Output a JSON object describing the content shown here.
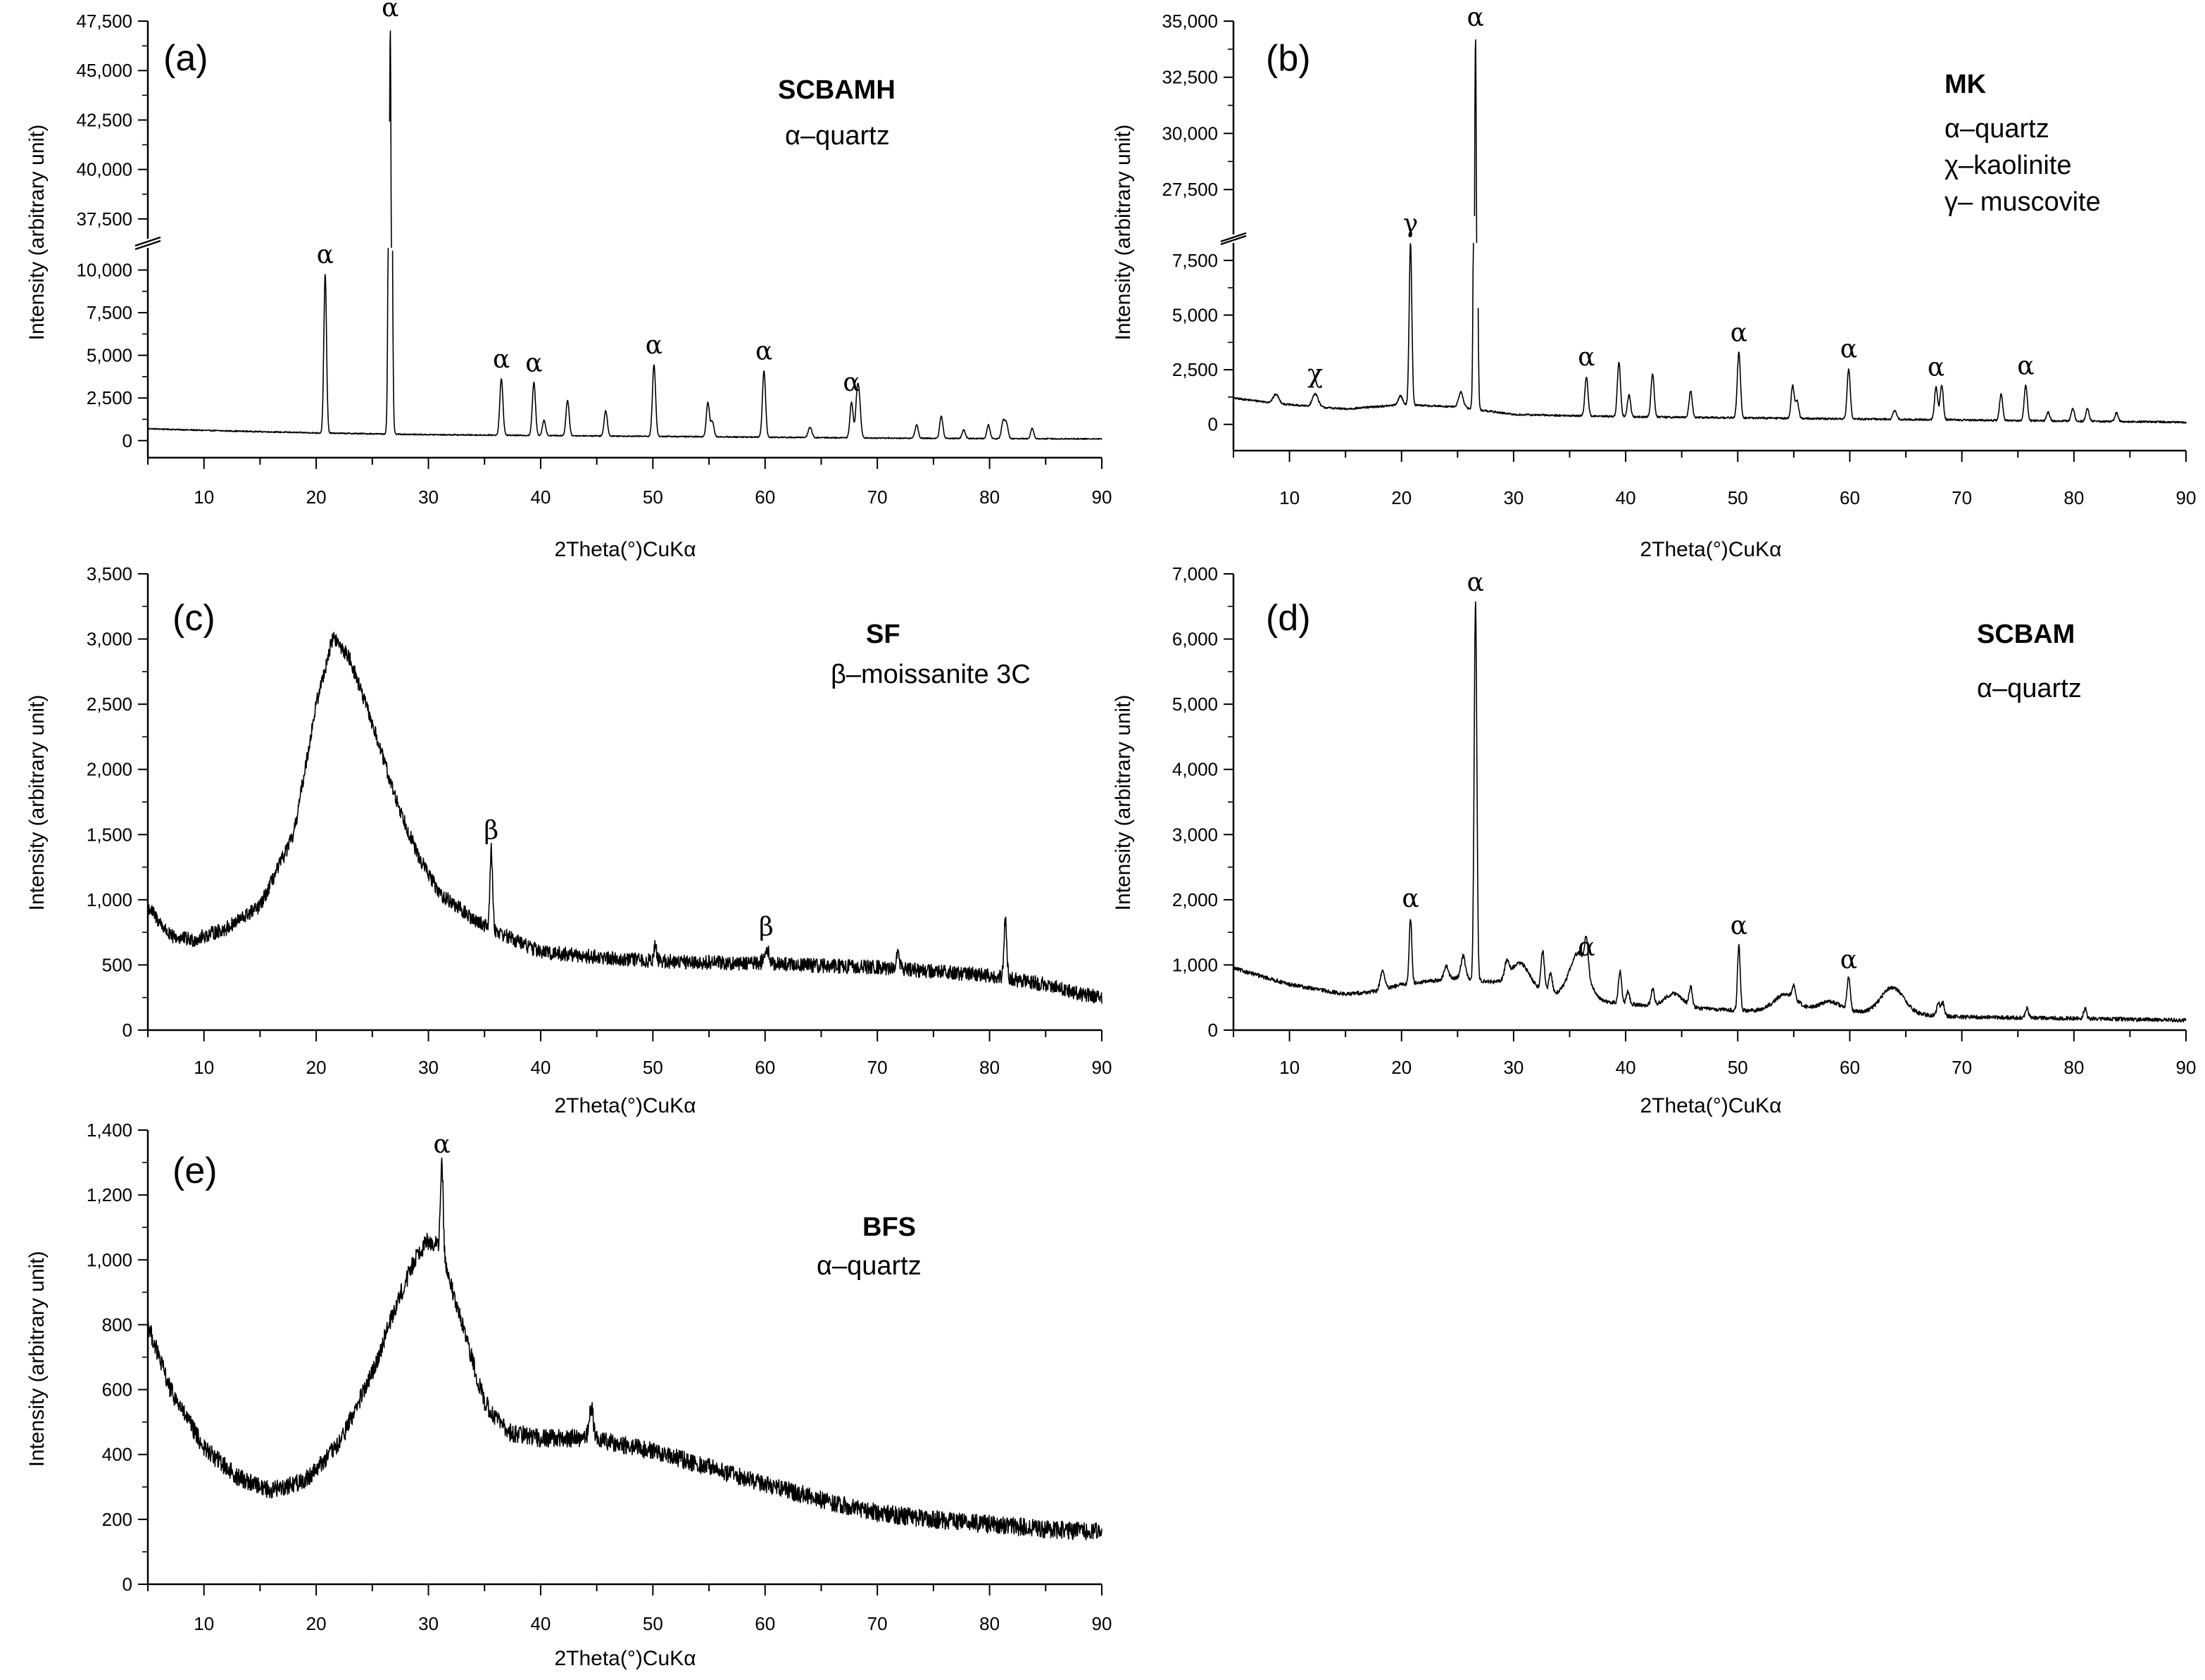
{
  "chart_data": [
    {
      "id": "a",
      "type": "line",
      "panel_label": "(a)",
      "sample": "SCBAMH",
      "legend": [
        "α–quartz"
      ],
      "xlabel": "2Theta(°)CuKα",
      "ylabel": "Intensity (arbitrary unit)",
      "xlim": [
        5,
        90
      ],
      "x_ticks": [
        "10",
        "20",
        "30",
        "40",
        "50",
        "60",
        "70",
        "80",
        "90"
      ],
      "broken_axis": true,
      "lower_ylim": [
        -1000,
        11300
      ],
      "upper_ylim": [
        36500,
        47500
      ],
      "y_ticks_lower": [
        "0",
        "2,500",
        "5,000",
        "7,500",
        "10,000"
      ],
      "y_ticks_upper": [
        "37,500",
        "40,000",
        "42,500",
        "45,000",
        "47,500"
      ],
      "baseline": [
        [
          5,
          700
        ],
        [
          10,
          600
        ],
        [
          20,
          450
        ],
        [
          30,
          350
        ],
        [
          40,
          300
        ],
        [
          50,
          250
        ],
        [
          60,
          200
        ],
        [
          70,
          150
        ],
        [
          80,
          120
        ],
        [
          90,
          100
        ]
      ],
      "noise": 35,
      "peaks": [
        {
          "x": 20.8,
          "y": 9300,
          "w": 0.12,
          "label": "α"
        },
        {
          "x": 26.6,
          "y": 46800,
          "w": 0.12,
          "label": "α"
        },
        {
          "x": 36.5,
          "y": 3300,
          "w": 0.14,
          "label": "α"
        },
        {
          "x": 39.4,
          "y": 3100,
          "w": 0.14,
          "label": "α"
        },
        {
          "x": 40.3,
          "y": 900,
          "w": 0.14
        },
        {
          "x": 42.4,
          "y": 2100,
          "w": 0.14
        },
        {
          "x": 45.8,
          "y": 1500,
          "w": 0.14
        },
        {
          "x": 50.1,
          "y": 4200,
          "w": 0.14,
          "label": "α"
        },
        {
          "x": 54.9,
          "y": 2000,
          "w": 0.14
        },
        {
          "x": 55.3,
          "y": 900,
          "w": 0.14
        },
        {
          "x": 59.9,
          "y": 3900,
          "w": 0.14,
          "label": "α"
        },
        {
          "x": 64.0,
          "y": 600,
          "w": 0.16
        },
        {
          "x": 67.7,
          "y": 2100,
          "w": 0.14,
          "label": "α"
        },
        {
          "x": 68.2,
          "y": 2300,
          "w": 0.14
        },
        {
          "x": 68.4,
          "y": 1800,
          "w": 0.14
        },
        {
          "x": 73.5,
          "y": 800,
          "w": 0.14
        },
        {
          "x": 75.7,
          "y": 1300,
          "w": 0.14
        },
        {
          "x": 77.7,
          "y": 500,
          "w": 0.14
        },
        {
          "x": 79.9,
          "y": 800,
          "w": 0.14
        },
        {
          "x": 81.2,
          "y": 1000,
          "w": 0.14
        },
        {
          "x": 81.5,
          "y": 900,
          "w": 0.14
        },
        {
          "x": 83.8,
          "y": 600,
          "w": 0.14
        }
      ],
      "humps": []
    },
    {
      "id": "b",
      "type": "line",
      "panel_label": "(b)",
      "sample": "MK",
      "legend": [
        "α–quartz",
        "χ–kaolinite",
        "γ– muscovite"
      ],
      "xlabel": "2Theta(°)CuKα",
      "ylabel": "Intensity (arbitrary unit)",
      "xlim": [
        5,
        90
      ],
      "x_ticks": [
        "10",
        "20",
        "30",
        "40",
        "50",
        "60",
        "70",
        "80",
        "90"
      ],
      "broken_axis": true,
      "lower_ylim": [
        -1200,
        8300
      ],
      "upper_ylim": [
        25500,
        35000
      ],
      "y_ticks_lower": [
        "0",
        "2,500",
        "5,000",
        "7,500"
      ],
      "y_ticks_upper": [
        "27,500",
        "30,000",
        "32,500",
        "35,000"
      ],
      "baseline": [
        [
          5,
          1200
        ],
        [
          10,
          900
        ],
        [
          15,
          700
        ],
        [
          20,
          900
        ],
        [
          25,
          800
        ],
        [
          30,
          450
        ],
        [
          40,
          350
        ],
        [
          50,
          300
        ],
        [
          60,
          250
        ],
        [
          70,
          200
        ],
        [
          80,
          150
        ],
        [
          90,
          100
        ]
      ],
      "noise": 45,
      "peaks": [
        {
          "x": 8.8,
          "y": 400,
          "w": 0.25
        },
        {
          "x": 12.3,
          "y": 600,
          "w": 0.25,
          "label": "χ"
        },
        {
          "x": 19.9,
          "y": 400,
          "w": 0.2
        },
        {
          "x": 20.8,
          "y": 7400,
          "w": 0.12,
          "label": "γ"
        },
        {
          "x": 25.3,
          "y": 700,
          "w": 0.2
        },
        {
          "x": 26.6,
          "y": 33600,
          "w": 0.12,
          "label": "α"
        },
        {
          "x": 36.5,
          "y": 1800,
          "w": 0.14,
          "label": "α"
        },
        {
          "x": 39.4,
          "y": 2500,
          "w": 0.14
        },
        {
          "x": 40.3,
          "y": 1000,
          "w": 0.14
        },
        {
          "x": 42.4,
          "y": 2000,
          "w": 0.14
        },
        {
          "x": 45.8,
          "y": 1200,
          "w": 0.14
        },
        {
          "x": 50.1,
          "y": 3000,
          "w": 0.14,
          "label": "α"
        },
        {
          "x": 54.9,
          "y": 1500,
          "w": 0.14
        },
        {
          "x": 55.3,
          "y": 800,
          "w": 0.14
        },
        {
          "x": 59.9,
          "y": 2300,
          "w": 0.14,
          "label": "α"
        },
        {
          "x": 64.0,
          "y": 400,
          "w": 0.16
        },
        {
          "x": 67.7,
          "y": 1500,
          "w": 0.14,
          "label": "α"
        },
        {
          "x": 68.2,
          "y": 1600,
          "w": 0.14
        },
        {
          "x": 73.5,
          "y": 1200,
          "w": 0.14
        },
        {
          "x": 75.7,
          "y": 1600,
          "w": 0.14,
          "label": "α"
        },
        {
          "x": 77.7,
          "y": 400,
          "w": 0.14
        },
        {
          "x": 79.9,
          "y": 600,
          "w": 0.14
        },
        {
          "x": 81.2,
          "y": 600,
          "w": 0.14
        },
        {
          "x": 83.8,
          "y": 400,
          "w": 0.14
        }
      ],
      "humps": []
    },
    {
      "id": "c",
      "type": "line",
      "panel_label": "(c)",
      "sample": "SF",
      "legend": [
        "β–moissanite 3C"
      ],
      "xlabel": "2Theta(°)CuKα",
      "ylabel": "Intensity (arbitrary unit)",
      "xlim": [
        5,
        90
      ],
      "x_ticks": [
        "10",
        "20",
        "30",
        "40",
        "50",
        "60",
        "70",
        "80",
        "90"
      ],
      "broken_axis": false,
      "ylim": [
        0,
        3500
      ],
      "y_ticks": [
        "0",
        "500",
        "1,000",
        "1,500",
        "2,000",
        "2,500",
        "3,000",
        "3,500"
      ],
      "baseline": [
        [
          5,
          950
        ],
        [
          7,
          720
        ],
        [
          9,
          690
        ],
        [
          12,
          780
        ],
        [
          15,
          950
        ],
        [
          18,
          1500
        ],
        [
          20,
          2500
        ],
        [
          21.5,
          3020
        ],
        [
          23,
          2850
        ],
        [
          25,
          2350
        ],
        [
          27,
          1800
        ],
        [
          29,
          1350
        ],
        [
          31,
          1050
        ],
        [
          34,
          850
        ],
        [
          37,
          720
        ],
        [
          40,
          600
        ],
        [
          45,
          560
        ],
        [
          50,
          530
        ],
        [
          60,
          510
        ],
        [
          70,
          480
        ],
        [
          80,
          420
        ],
        [
          85,
          350
        ],
        [
          88,
          280
        ],
        [
          90,
          250
        ]
      ],
      "noise": 55,
      "peaks": [
        {
          "x": 35.6,
          "y": 600,
          "w": 0.12,
          "label": "β"
        },
        {
          "x": 50.2,
          "y": 120,
          "w": 0.12
        },
        {
          "x": 60.1,
          "y": 130,
          "w": 0.2,
          "label": "β"
        },
        {
          "x": 71.8,
          "y": 120,
          "w": 0.15
        },
        {
          "x": 81.4,
          "y": 430,
          "w": 0.12
        }
      ],
      "humps": []
    },
    {
      "id": "d",
      "type": "line",
      "panel_label": "(d)",
      "sample": "SCBAM",
      "legend": [
        "α–quartz"
      ],
      "xlabel": "2Theta(°)CuKα",
      "ylabel": "Intensity (arbitrary unit)",
      "xlim": [
        5,
        90
      ],
      "x_ticks": [
        "10",
        "20",
        "30",
        "40",
        "50",
        "60",
        "70",
        "80",
        "90"
      ],
      "broken_axis": false,
      "ylim": [
        0,
        7000
      ],
      "y_ticks": [
        "0",
        "1,000",
        "2,000",
        "3,000",
        "4,000",
        "5,000",
        "6,000",
        "7,000"
      ],
      "baseline": [
        [
          5,
          950
        ],
        [
          10,
          700
        ],
        [
          15,
          550
        ],
        [
          18,
          600
        ],
        [
          20,
          700
        ],
        [
          25,
          800
        ],
        [
          30,
          700
        ],
        [
          35,
          500
        ],
        [
          40,
          400
        ],
        [
          45,
          350
        ],
        [
          50,
          300
        ],
        [
          55,
          300
        ],
        [
          60,
          280
        ],
        [
          65,
          250
        ],
        [
          70,
          200
        ],
        [
          80,
          180
        ],
        [
          90,
          150
        ]
      ],
      "noise": 30,
      "peaks": [
        {
          "x": 18.3,
          "y": 300,
          "w": 0.2
        },
        {
          "x": 20.8,
          "y": 1000,
          "w": 0.12,
          "label": "α"
        },
        {
          "x": 24.0,
          "y": 200,
          "w": 0.2
        },
        {
          "x": 25.5,
          "y": 350,
          "w": 0.2
        },
        {
          "x": 26.6,
          "y": 5800,
          "w": 0.12,
          "label": "α"
        },
        {
          "x": 29.4,
          "y": 250,
          "w": 0.2
        },
        {
          "x": 32.6,
          "y": 600,
          "w": 0.15
        },
        {
          "x": 33.3,
          "y": 300,
          "w": 0.15
        },
        {
          "x": 36.5,
          "y": 500,
          "w": 0.15,
          "label": "α"
        },
        {
          "x": 39.5,
          "y": 500,
          "w": 0.14
        },
        {
          "x": 40.2,
          "y": 200,
          "w": 0.14
        },
        {
          "x": 42.4,
          "y": 250,
          "w": 0.14
        },
        {
          "x": 45.8,
          "y": 300,
          "w": 0.14
        },
        {
          "x": 50.1,
          "y": 1000,
          "w": 0.12,
          "label": "α"
        },
        {
          "x": 55.0,
          "y": 200,
          "w": 0.14
        },
        {
          "x": 59.9,
          "y": 500,
          "w": 0.14,
          "label": "α"
        },
        {
          "x": 67.9,
          "y": 200,
          "w": 0.14
        },
        {
          "x": 68.3,
          "y": 200,
          "w": 0.14
        },
        {
          "x": 75.8,
          "y": 150,
          "w": 0.14
        },
        {
          "x": 81.0,
          "y": 150,
          "w": 0.14
        }
      ],
      "humps": [
        {
          "x": 30.6,
          "y": 350,
          "w": 0.8
        },
        {
          "x": 35.8,
          "y": 700,
          "w": 0.8
        },
        {
          "x": 44.3,
          "y": 200,
          "w": 0.8
        },
        {
          "x": 54.3,
          "y": 250,
          "w": 1.0
        },
        {
          "x": 58.2,
          "y": 150,
          "w": 1.0
        },
        {
          "x": 63.8,
          "y": 400,
          "w": 1.0
        }
      ]
    },
    {
      "id": "e",
      "type": "line",
      "panel_label": "(e)",
      "sample": "BFS",
      "legend": [
        "α–quartz"
      ],
      "xlabel": "2Theta(°)CuKα",
      "ylabel": "Intensity (arbitrary unit)",
      "xlim": [
        5,
        90
      ],
      "x_ticks": [
        "10",
        "20",
        "30",
        "40",
        "50",
        "60",
        "70",
        "80",
        "90"
      ],
      "broken_axis": false,
      "ylim": [
        0,
        1400
      ],
      "y_ticks": [
        "0",
        "200",
        "400",
        "600",
        "800",
        "1,000",
        "1,200",
        "1,400"
      ],
      "baseline": [
        [
          5,
          800
        ],
        [
          7,
          600
        ],
        [
          10,
          420
        ],
        [
          13,
          330
        ],
        [
          16,
          290
        ],
        [
          19,
          320
        ],
        [
          22,
          430
        ],
        [
          25,
          650
        ],
        [
          27,
          850
        ],
        [
          29,
          1020
        ],
        [
          30,
          1060
        ],
        [
          31,
          1040
        ],
        [
          33,
          800
        ],
        [
          35,
          560
        ],
        [
          37,
          470
        ],
        [
          40,
          450
        ],
        [
          43,
          450
        ],
        [
          46,
          440
        ],
        [
          50,
          410
        ],
        [
          55,
          360
        ],
        [
          60,
          310
        ],
        [
          65,
          260
        ],
        [
          70,
          220
        ],
        [
          75,
          200
        ],
        [
          80,
          185
        ],
        [
          85,
          170
        ],
        [
          90,
          160
        ]
      ],
      "noise": 28,
      "peaks": [
        {
          "x": 31.2,
          "y": 280,
          "w": 0.12,
          "label": "α"
        },
        {
          "x": 44.5,
          "y": 100,
          "w": 0.2
        }
      ],
      "humps": []
    }
  ]
}
